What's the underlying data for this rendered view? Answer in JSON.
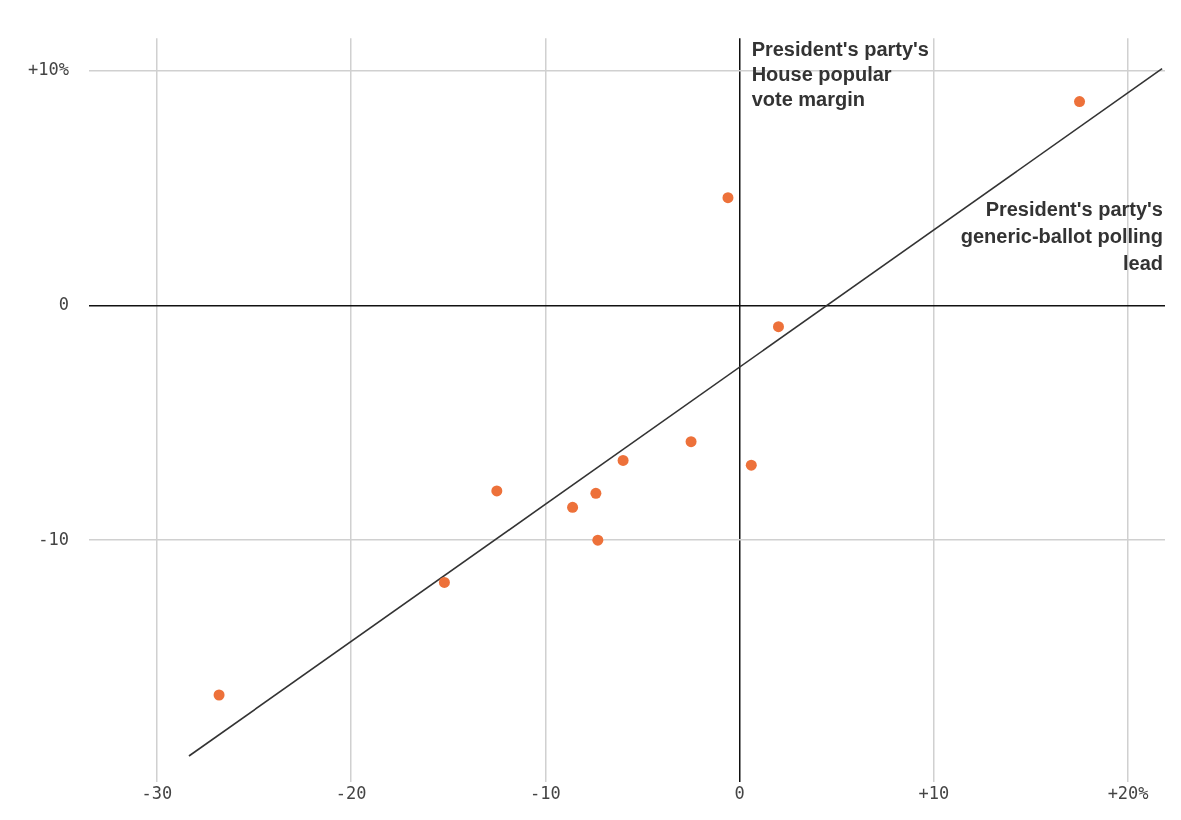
{
  "chart_data": {
    "type": "scatter",
    "xlabel": "President's party's generic-ballot polling lead",
    "ylabel": "President's party's House popular vote margin",
    "x": [
      17.5,
      -0.6,
      2.0,
      -2.5,
      -6.0,
      0.6,
      -12.5,
      -7.4,
      -8.6,
      -7.3,
      -15.2,
      -26.8
    ],
    "series": [
      {
        "name": null,
        "color": "#ed713a",
        "values": [
          8.7,
          4.6,
          -0.9,
          -5.8,
          -6.6,
          -6.8,
          -7.9,
          -8.0,
          -8.6,
          -10.0,
          -11.8,
          -16.6
        ]
      },
      {
        "type": "line",
        "color": "#333333",
        "x": [
          -28.35,
          21.75
        ],
        "values": [
          -19.2,
          10.1
        ],
        "marker": "none"
      }
    ],
    "xlim": [
      -33.5,
      21.9
    ],
    "ylim": [
      -20.3,
      11.4
    ],
    "xticks": [
      {
        "value": -30,
        "label": "-30"
      },
      {
        "value": -20,
        "label": "-20"
      },
      {
        "value": -10,
        "label": "-10"
      },
      0,
      {
        "value": 10,
        "label": "+10"
      },
      {
        "value": 20,
        "label": "+20%"
      }
    ],
    "yticks": [
      {
        "value": -10,
        "label": "-10"
      },
      0,
      {
        "value": 10,
        "label": "+10%"
      }
    ],
    "grid": true,
    "legend": false,
    "marker": "circle"
  }
}
